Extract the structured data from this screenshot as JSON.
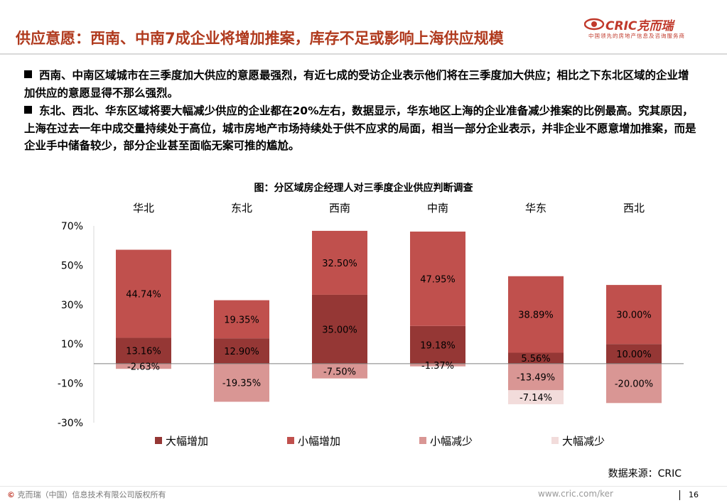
{
  "header": {
    "title": "供应意愿：西南、中南7成企业将增加推案，库存不足或影响上海供应规模",
    "logo": {
      "brand": "CRIC克而瑞",
      "tagline": "中国领先的房地产信息及咨询服务商"
    }
  },
  "bullets": [
    "西南、中南区域城市在三季度加大供应的意愿最强烈，有近七成的受访企业表示他们将在三季度加大供应；相比之下东北区域的企业增加供应的意愿显得不那么强烈。",
    "东北、西北、华东区域将要大幅减少供应的企业都在20%左右，数据显示，华东地区上海的企业准备减少推案的比例最高。究其原因，上海在过去一年中成交量持续处于高位，城市房地产市场持续处于供不应求的局面，相当一部分企业表示，并非企业不愿意增加推案，而是企业手中储备较少，部分企业甚至面临无案可推的尴尬。"
  ],
  "chart_data": {
    "type": "bar",
    "stacked": true,
    "title": "图：分区域房企经理人对三季度企业供应判断调查",
    "categories": [
      "华北",
      "东北",
      "西南",
      "中南",
      "华东",
      "西北"
    ],
    "series": [
      {
        "name": "大幅增加",
        "color": "#953735",
        "values": [
          13.16,
          12.9,
          35.0,
          19.18,
          5.56,
          10.0
        ]
      },
      {
        "name": "小幅增加",
        "color": "#c0504d",
        "values": [
          44.74,
          19.35,
          32.5,
          47.95,
          38.89,
          30.0
        ]
      },
      {
        "name": "小幅减少",
        "color": "#d99694",
        "values": [
          -2.63,
          -19.35,
          -7.5,
          -1.37,
          -13.49,
          -20.0
        ]
      },
      {
        "name": "大幅减少",
        "color": "#f2dcdb",
        "values": [
          0,
          0,
          0,
          0,
          -7.14,
          0
        ]
      }
    ],
    "data_labels": [
      [
        "13.16%",
        "12.90%",
        "35.00%",
        "19.18%",
        "5.56%",
        "10.00%"
      ],
      [
        "44.74%",
        "19.35%",
        "32.50%",
        "47.95%",
        "38.89%",
        "30.00%"
      ],
      [
        "-2.63%",
        "-19.35%",
        "-7.50%",
        "-1.37%",
        "-13.49%",
        "-20.00%"
      ],
      [
        "",
        "",
        "",
        "",
        "-7.14%",
        ""
      ]
    ],
    "yticks": [
      "70%",
      "50%",
      "30%",
      "10%",
      "-10%",
      "-30%"
    ],
    "ylim": [
      -30,
      70
    ],
    "legend_position": "bottom"
  },
  "source": "数据来源：CRIC",
  "footer": {
    "copyright_symbol": "©",
    "copyright": "克而瑞（中国）信息技术有限公司版权所有",
    "website": "www.cric.com/ker",
    "page": "16"
  }
}
